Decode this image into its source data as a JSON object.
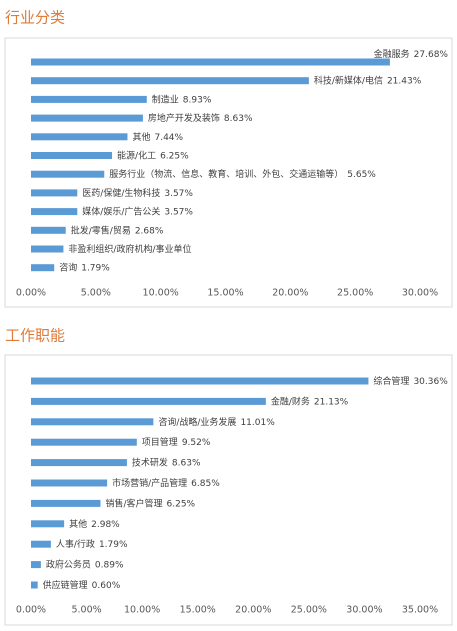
{
  "chart_data": [
    {
      "type": "hbar",
      "title": "行业分类",
      "color": "#5b9bd5",
      "categories": [
        "金融服务",
        "科技/新媒体/电信",
        "制造业",
        "房地产开发及装饰",
        "其他",
        "能源/化工",
        "服务行业（物流、信息、教育、培训、外包、交通运输等）",
        "医药/保健/生物科技",
        "媒体/娱乐/广告公关",
        "批发/零售/贸易",
        "非盈利组织/政府机构/事业单位",
        "咨询"
      ],
      "values": [
        27.68,
        21.43,
        8.93,
        8.63,
        7.44,
        6.25,
        5.65,
        3.57,
        3.57,
        2.68,
        2.5,
        1.79
      ],
      "value_labels": [
        "27.68%",
        "21.43%",
        "8.93%",
        "8.63%",
        "7.44%",
        "6.25%",
        "5.65%",
        "3.57%",
        "3.57%",
        "2.68%",
        null,
        "1.79%"
      ],
      "xlim": [
        0,
        30
      ],
      "xticks": [
        {
          "value": 0,
          "label": "0.00%"
        },
        {
          "value": 5,
          "label": "5.00%"
        },
        {
          "value": 10,
          "label": "10.00%"
        },
        {
          "value": 15,
          "label": "15.00%"
        },
        {
          "value": 20,
          "label": "20.00%"
        },
        {
          "value": 25,
          "label": "25.00%"
        },
        {
          "value": 30,
          "label": "30.00%"
        }
      ]
    },
    {
      "type": "hbar",
      "title": "工作职能",
      "color": "#5b9bd5",
      "categories": [
        "综合管理",
        "金融/财务",
        "咨询/战略/业务发展",
        "项目管理",
        "技术研发",
        "市场营销/产品管理",
        "销售/客户管理",
        "其他",
        "人事/行政",
        "政府公务员",
        "供应链管理"
      ],
      "values": [
        30.36,
        21.13,
        11.01,
        9.52,
        8.63,
        6.85,
        6.25,
        2.98,
        1.79,
        0.89,
        0.6
      ],
      "value_labels": [
        "30.36%",
        "21.13%",
        "11.01%",
        "9.52%",
        "8.63%",
        "6.85%",
        "6.25%",
        "2.98%",
        "1.79%",
        "0.89%",
        "0.60%"
      ],
      "xlim": [
        0,
        35
      ],
      "xticks": [
        {
          "value": 0,
          "label": "0.00%"
        },
        {
          "value": 5,
          "label": "5.00%"
        },
        {
          "value": 10,
          "label": "10.00%"
        },
        {
          "value": 15,
          "label": "15.00%"
        },
        {
          "value": 20,
          "label": "20.00%"
        },
        {
          "value": 25,
          "label": "25.00%"
        },
        {
          "value": 30,
          "label": "30.00%"
        },
        {
          "value": 35,
          "label": "35.00%"
        }
      ]
    }
  ]
}
